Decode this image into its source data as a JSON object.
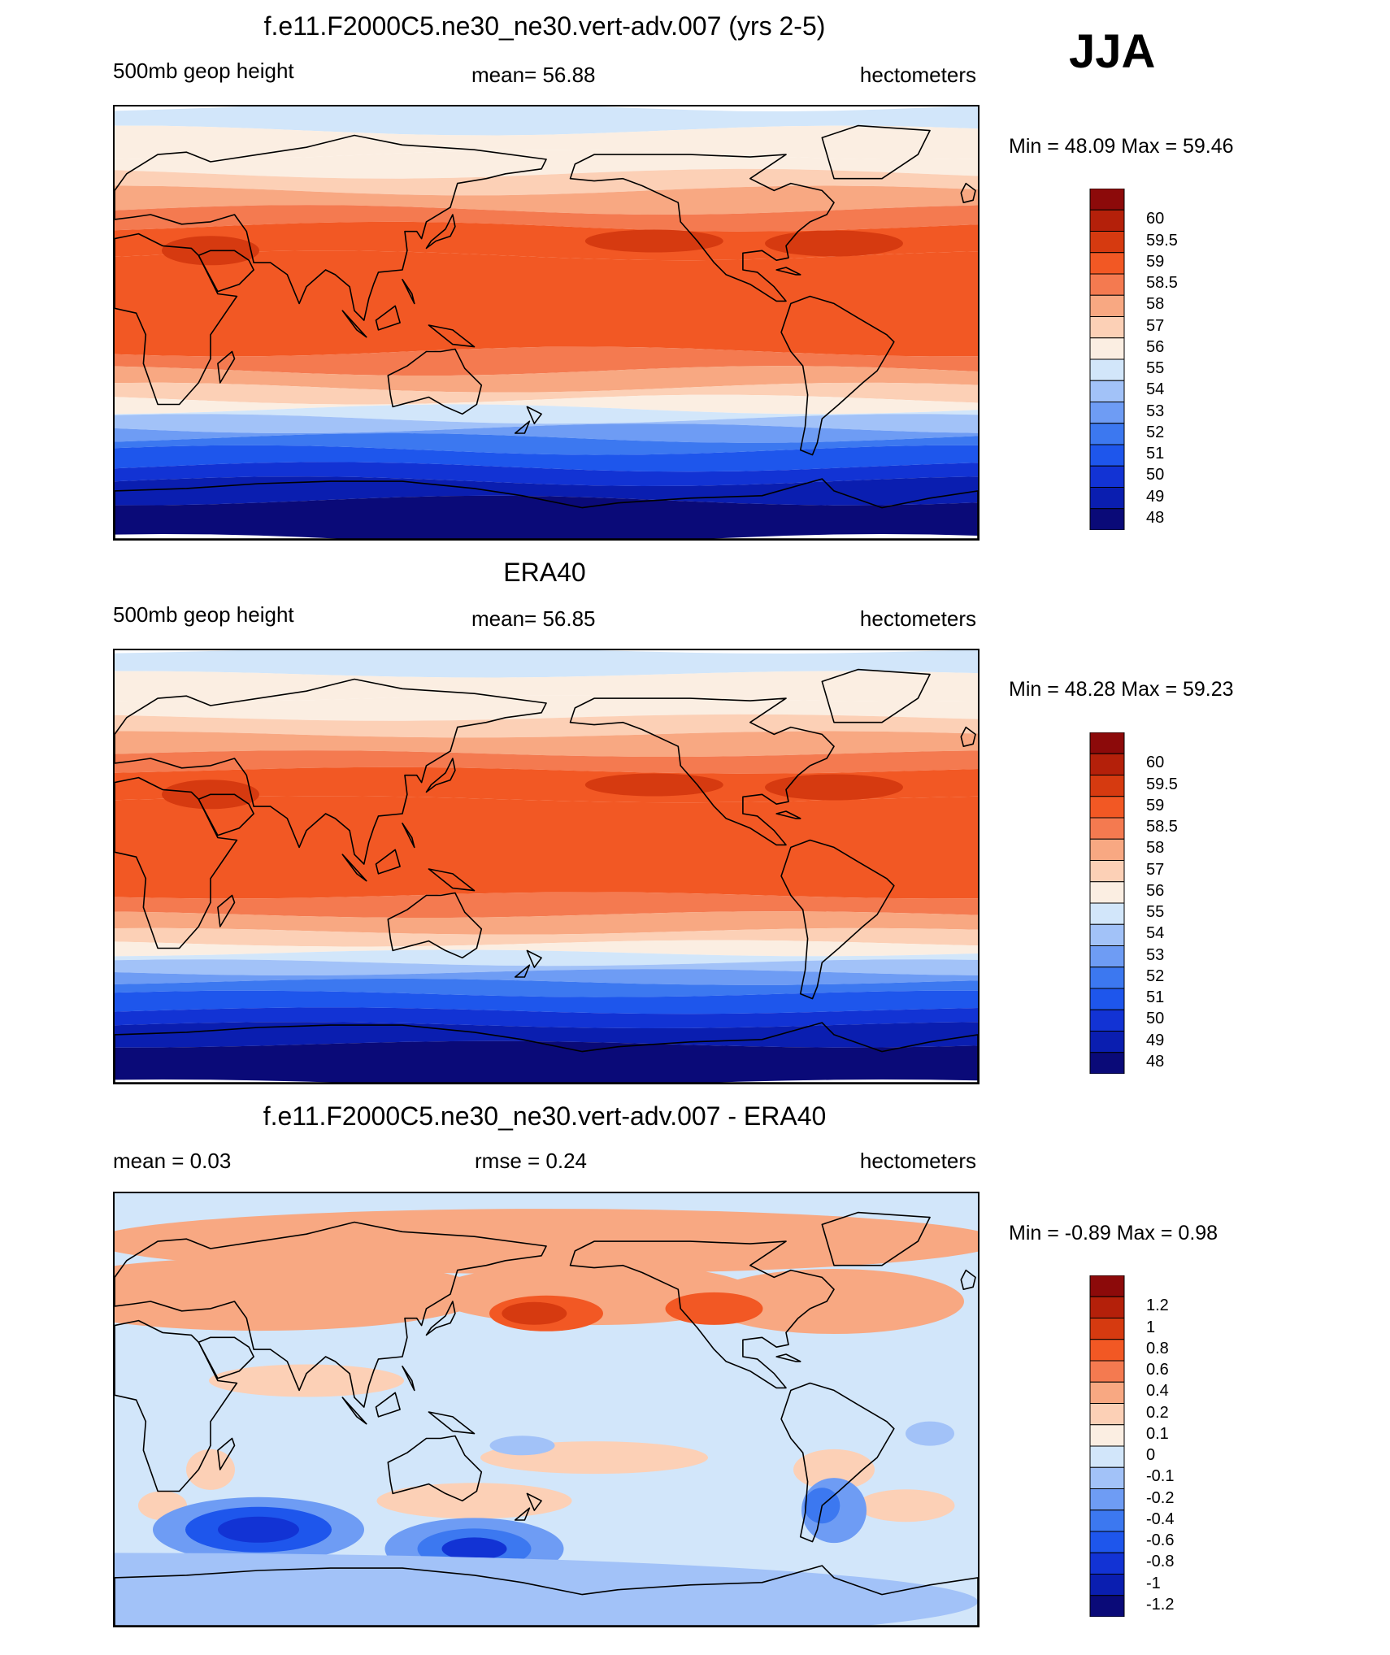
{
  "season": "JJA",
  "colors": {
    "height": [
      "#0a0a78",
      "#0a1eb0",
      "#1233d4",
      "#1e56ec",
      "#3c78f0",
      "#6e9cf4",
      "#a2c2f8",
      "#d2e6fa",
      "#fbeee2",
      "#fcd0b6",
      "#f8a882",
      "#f47a50",
      "#f25824",
      "#d63a10",
      "#b4200a",
      "#8c0a0a"
    ],
    "diff": [
      "#0a0a78",
      "#0a1eb0",
      "#1233d4",
      "#1e56ec",
      "#3c78f0",
      "#6e9cf4",
      "#a2c2f8",
      "#d2e6fa",
      "#fbeee2",
      "#fcd0b6",
      "#f8a882",
      "#f47a50",
      "#f25824",
      "#d63a10",
      "#b4200a",
      "#8c0a0a"
    ],
    "coast": "#000000"
  },
  "panels": [
    {
      "title": "f.e11.F2000C5.ne30_ne30.vert-adv.007 (yrs 2-5)",
      "left_text": "500mb geop height",
      "center_text": "mean=  56.88",
      "right_text": "hectometers",
      "minmax": "Min =  48.09 Max =  59.46",
      "colorbar_labels": [
        "60",
        "59.5",
        "59",
        "58.5",
        "58",
        "57",
        "56",
        "55",
        "54",
        "53",
        "52",
        "51",
        "50",
        "49",
        "48"
      ],
      "kind": "height"
    },
    {
      "title": "ERA40",
      "left_text": "500mb geop height",
      "center_text": "mean=  56.85",
      "right_text": "hectometers",
      "minmax": "Min =  48.28 Max =  59.23",
      "colorbar_labels": [
        "60",
        "59.5",
        "59",
        "58.5",
        "58",
        "57",
        "56",
        "55",
        "54",
        "53",
        "52",
        "51",
        "50",
        "49",
        "48"
      ],
      "kind": "height"
    },
    {
      "title": "f.e11.F2000C5.ne30_ne30.vert-adv.007 - ERA40",
      "left_text": "mean =   0.03",
      "center_text": "rmse =   0.24",
      "right_text": "hectometers",
      "minmax": "Min =  -0.89 Max =   0.98",
      "colorbar_labels": [
        "1.2",
        "1",
        "0.8",
        "0.6",
        "0.4",
        "0.2",
        "0.1",
        "0",
        "-0.1",
        "-0.2",
        "-0.4",
        "-0.6",
        "-0.8",
        "-1",
        "-1.2"
      ],
      "kind": "diff"
    }
  ]
}
